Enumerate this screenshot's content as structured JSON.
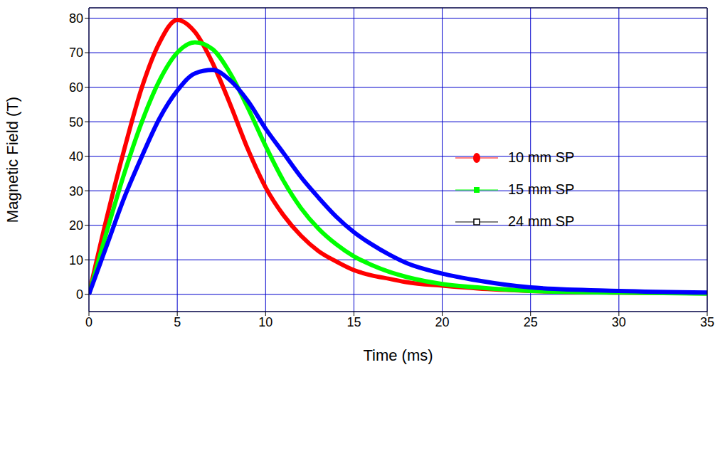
{
  "chart_data": {
    "type": "line",
    "x_label": "Time (ms)",
    "y_label": "Magnetic Field (T)",
    "x": [
      0,
      1,
      2,
      3,
      4,
      5,
      6,
      7,
      8,
      9,
      10,
      11,
      12,
      13,
      14,
      15,
      16,
      17,
      18,
      20,
      22,
      25,
      30,
      35
    ],
    "series": [
      {
        "name": "10 mm SP",
        "color": "#ff0000",
        "marker": "circle",
        "values": [
          0,
          22,
          42,
          60,
          73,
          79.5,
          76,
          67,
          55,
          42,
          31,
          23,
          17,
          12.5,
          9.5,
          7,
          5.5,
          4.5,
          3.5,
          2.5,
          1.7,
          1,
          0.5,
          0.3
        ]
      },
      {
        "name": "15 mm SP",
        "color": "#00ff00",
        "marker": "square",
        "values": [
          0,
          18,
          35,
          50,
          62,
          70,
          73,
          71,
          64,
          54,
          43,
          33,
          25,
          19,
          14.5,
          11,
          8.5,
          6.5,
          5,
          3,
          2,
          1,
          0.5,
          0.2
        ]
      },
      {
        "name": "24 mm SP",
        "color": "#0000ff",
        "marker": "open_square",
        "values": [
          0,
          14,
          28,
          40,
          51,
          59,
          64,
          65,
          62,
          56,
          48,
          41,
          34,
          28,
          22.5,
          18,
          14.5,
          11.5,
          9,
          6,
          4,
          2,
          1,
          0.5
        ]
      }
    ],
    "xlim": [
      0,
      35
    ],
    "xticks": [
      0,
      5,
      10,
      15,
      20,
      25,
      30,
      35
    ],
    "ylim": [
      -5,
      83
    ],
    "yticks": [
      0,
      10,
      20,
      30,
      40,
      50,
      60,
      70,
      80
    ],
    "grid": true,
    "legend": "right"
  }
}
